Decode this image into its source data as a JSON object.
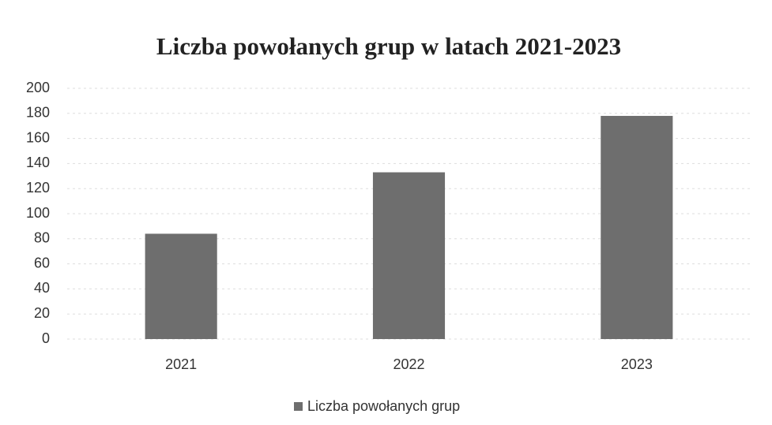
{
  "chart_data": {
    "type": "bar",
    "title": "Liczba powołanych grup w latach 2021-2023",
    "categories": [
      "2021",
      "2022",
      "2023"
    ],
    "series": [
      {
        "name": "Liczba powołanych grup",
        "color": "#6e6e6e",
        "values": [
          84,
          133,
          178
        ]
      }
    ],
    "ylim": [
      0,
      200
    ],
    "yticks": [
      0,
      20,
      40,
      60,
      80,
      100,
      120,
      140,
      160,
      180,
      200
    ],
    "grid": true,
    "legend": "bottom"
  }
}
